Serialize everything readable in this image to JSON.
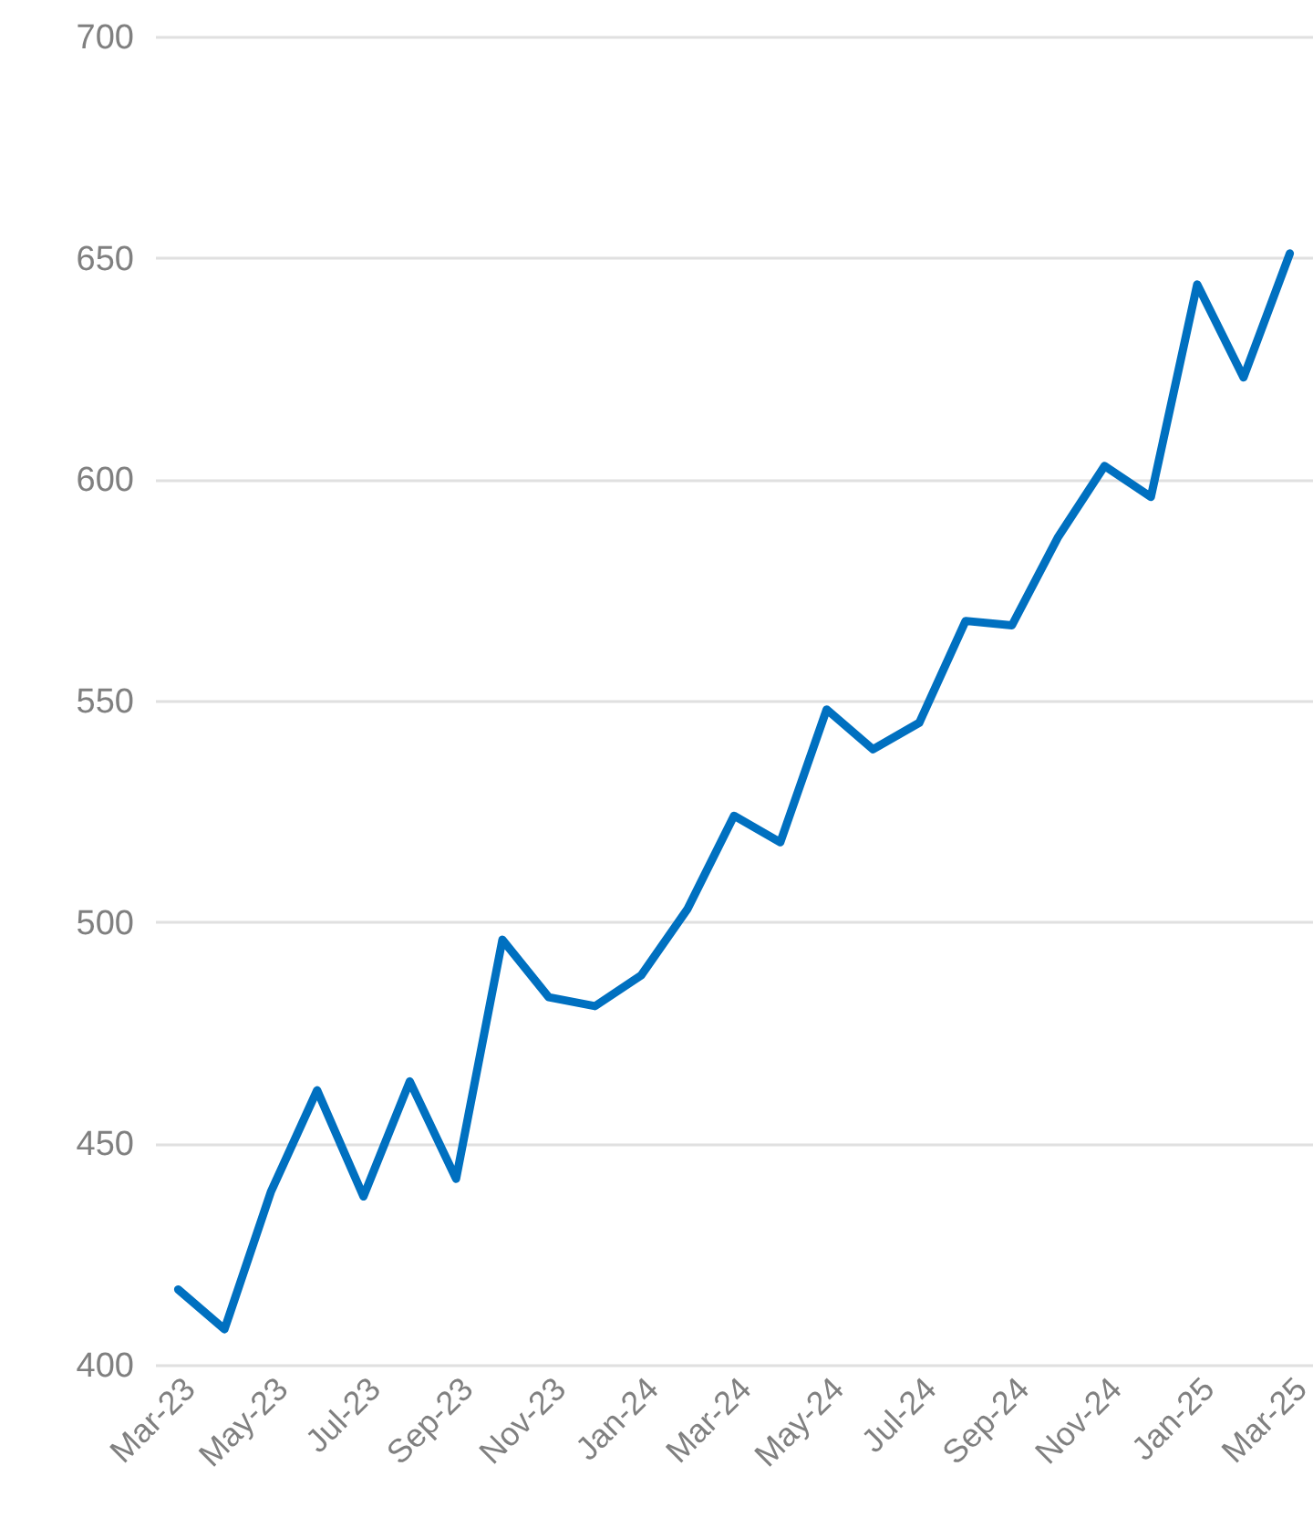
{
  "chart_data": {
    "type": "line",
    "categories": [
      "Mar-23",
      null,
      "May-23",
      null,
      "Jul-23",
      null,
      "Sep-23",
      null,
      "Nov-23",
      null,
      "Jan-24",
      null,
      "Mar-24",
      null,
      "May-24",
      null,
      "Jul-24",
      null,
      "Sep-24",
      null,
      "Nov-24",
      null,
      "Jan-25",
      null,
      "Mar-25"
    ],
    "series": [
      {
        "color": "#0070c0",
        "values": [
          417,
          408,
          439,
          462,
          438,
          464,
          442,
          496,
          483,
          481,
          488,
          503,
          524,
          518,
          548,
          539,
          545,
          568,
          567,
          587,
          603,
          596,
          644,
          623,
          651
        ]
      }
    ],
    "ylim": [
      400,
      700
    ],
    "yticks": [
      400,
      450,
      500,
      550,
      600,
      650,
      700
    ],
    "grid": "y",
    "marker": "none",
    "line_style": "solid"
  }
}
